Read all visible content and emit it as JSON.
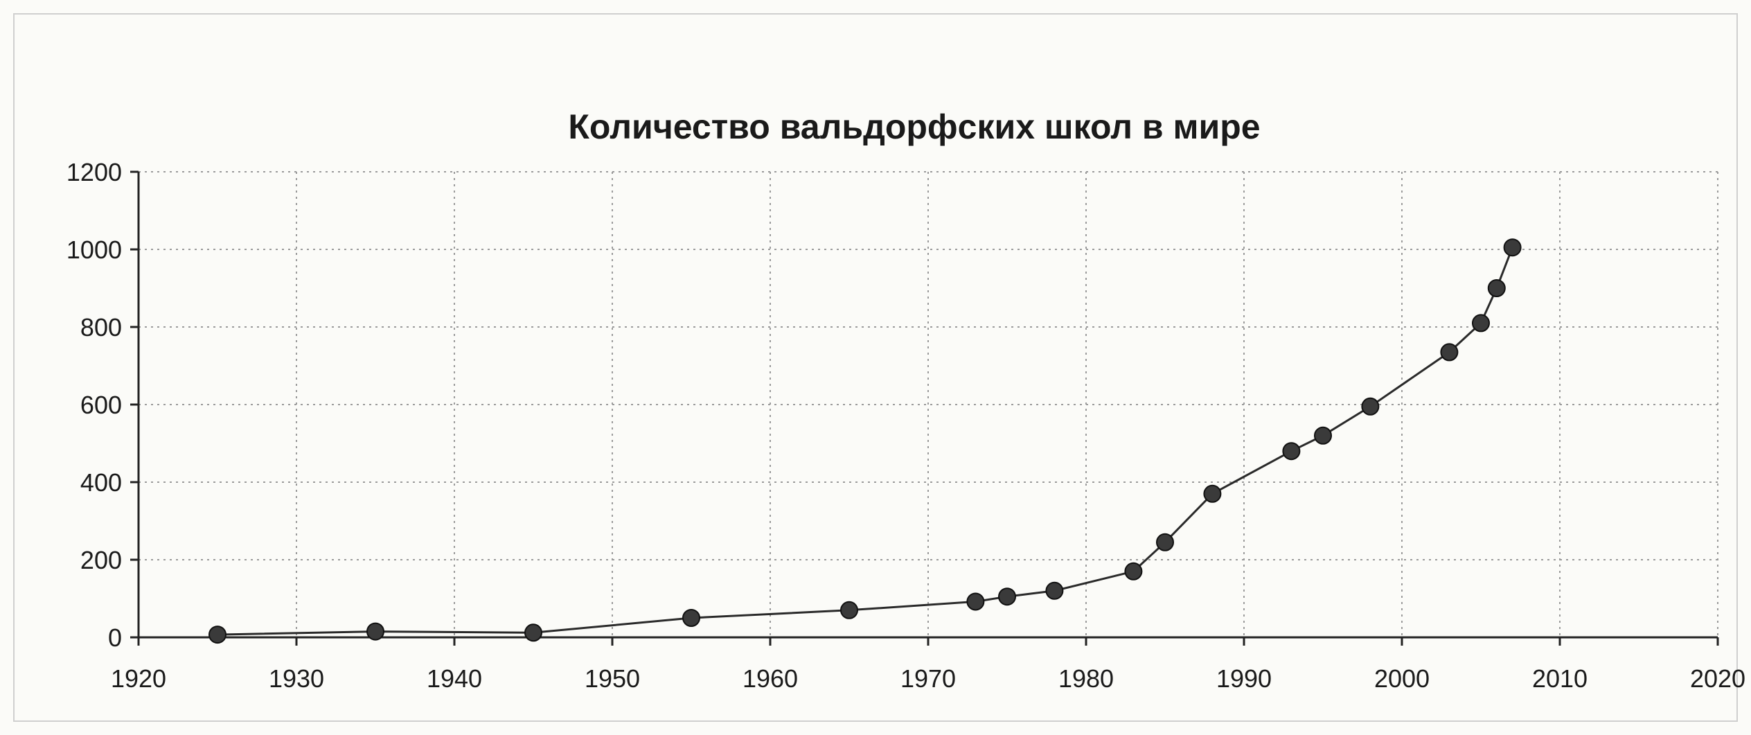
{
  "chart_data": {
    "type": "line",
    "title": "Количество вальдорфских школ в мире",
    "xlabel": "",
    "ylabel": "",
    "xlim": [
      1920,
      2020
    ],
    "ylim": [
      0,
      1200
    ],
    "x_ticks": [
      1920,
      1930,
      1940,
      1950,
      1960,
      1970,
      1980,
      1990,
      2000,
      2010,
      2020
    ],
    "y_ticks": [
      0,
      200,
      400,
      600,
      800,
      1000,
      1200
    ],
    "grid": true,
    "legend": "none",
    "series": [
      {
        "x": [
          1925,
          1935,
          1945,
          1955,
          1965,
          1973,
          1975,
          1978,
          1983,
          1985,
          1988,
          1993,
          1995,
          1998,
          2003,
          2005,
          2006,
          2007
        ],
        "y": [
          7,
          15,
          12,
          50,
          70,
          92,
          105,
          120,
          170,
          245,
          370,
          480,
          520,
          595,
          735,
          810,
          900,
          1005
        ]
      }
    ],
    "colors": {
      "line": "#2a2a2a",
      "marker": "#3a3a3a",
      "grid": "#9a9a9a",
      "background": "#fbfbf8"
    }
  }
}
